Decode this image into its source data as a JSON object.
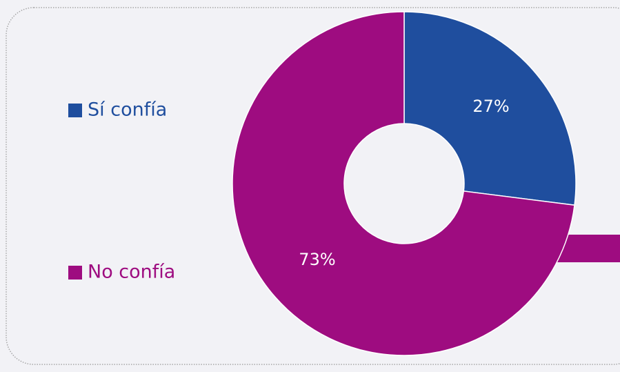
{
  "chart_data": {
    "type": "donut",
    "categories": [
      "Sí confía",
      "No confía"
    ],
    "values": [
      27,
      73
    ],
    "value_labels": [
      "27%",
      "73%"
    ],
    "colors": [
      "#1f4e9e",
      "#9e0c80"
    ]
  }
}
